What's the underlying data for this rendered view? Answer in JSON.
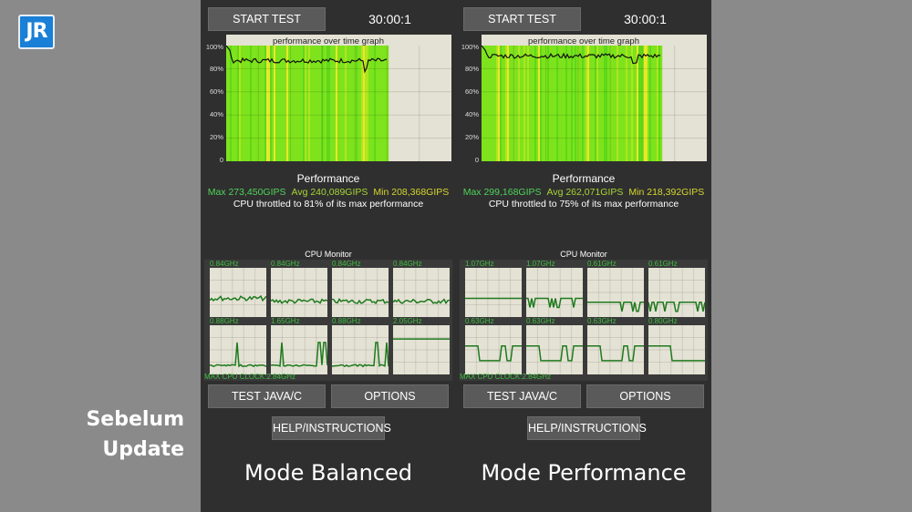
{
  "logo": {
    "text": "JR"
  },
  "caption": {
    "line1": "Sebelum",
    "line2": "Update"
  },
  "y_ticks": [
    "100%",
    "80%",
    "60%",
    "40%",
    "20%",
    "0"
  ],
  "colors": {
    "bar_green": "#7ee31c",
    "throttle_line": "#111111",
    "core_line": "#1e7a1e"
  },
  "panels": [
    {
      "start_label": "START TEST",
      "timer": "30:00:1",
      "graph_title": "performance over time graph",
      "perf_title": "Performance",
      "stat_max": "Max 273,450GIPS",
      "stat_avg": "Avg 240,089GIPS",
      "stat_min": "Min 208,368GIPS",
      "throttle": "CPU throttled to 81% of its max performance",
      "cpu_monitor_title": "CPU Monitor",
      "cores": [
        {
          "freq": "0.84GHz",
          "level": 0.38,
          "pattern": "noise"
        },
        {
          "freq": "0.84GHz",
          "level": 0.32,
          "pattern": "noise"
        },
        {
          "freq": "0.84GHz",
          "level": 0.32,
          "pattern": "noise"
        },
        {
          "freq": "0.84GHz",
          "level": 0.32,
          "pattern": "noise"
        },
        {
          "freq": "0.88GHz",
          "level": 0.2,
          "pattern": "spikes"
        },
        {
          "freq": "1.65GHz",
          "level": 0.2,
          "pattern": "spikes"
        },
        {
          "freq": "0.88GHz",
          "level": 0.2,
          "pattern": "spikes"
        },
        {
          "freq": "2.05GHz",
          "level": 0.72,
          "pattern": "flat"
        }
      ],
      "max_cpu_clock": "MAX CPU CLOCK:2.84GHz",
      "java_label": "TEST JAVA/C",
      "options_label": "OPTIONS",
      "help_label": "HELP/INSTRUCTIONS",
      "mode_label": "Mode Balanced",
      "graph_fill_fraction": 0.72,
      "avg_level": 0.87
    },
    {
      "start_label": "START TEST",
      "timer": "30:00:1",
      "graph_title": "performance over time graph",
      "perf_title": "Performance",
      "stat_max": "Max 299,168GIPS",
      "stat_avg": "Avg 262,071GIPS",
      "stat_min": "Min 218,392GIPS",
      "throttle": "CPU throttled to 75% of its max performance",
      "cpu_monitor_title": "CPU Monitor",
      "cores": [
        {
          "freq": "1.07GHz",
          "level": 0.38,
          "pattern": "flat"
        },
        {
          "freq": "1.07GHz",
          "level": 0.38,
          "pattern": "dips"
        },
        {
          "freq": "0.61GHz",
          "level": 0.3,
          "pattern": "dips"
        },
        {
          "freq": "0.61GHz",
          "level": 0.3,
          "pattern": "dips"
        },
        {
          "freq": "0.63GHz",
          "level": 0.55,
          "pattern": "blocks"
        },
        {
          "freq": "0.63GHz",
          "level": 0.55,
          "pattern": "blocks"
        },
        {
          "freq": "0.63GHz",
          "level": 0.55,
          "pattern": "blocks"
        },
        {
          "freq": "0.80GHz",
          "level": 0.55,
          "pattern": "step"
        }
      ],
      "max_cpu_clock": "MAX CPU CLOCK:2.84GHz",
      "java_label": "TEST JAVA/C",
      "options_label": "OPTIONS",
      "help_label": "HELP/INSTRUCTIONS",
      "mode_label": "Mode Performance",
      "graph_fill_fraction": 0.8,
      "avg_level": 0.91
    }
  ]
}
